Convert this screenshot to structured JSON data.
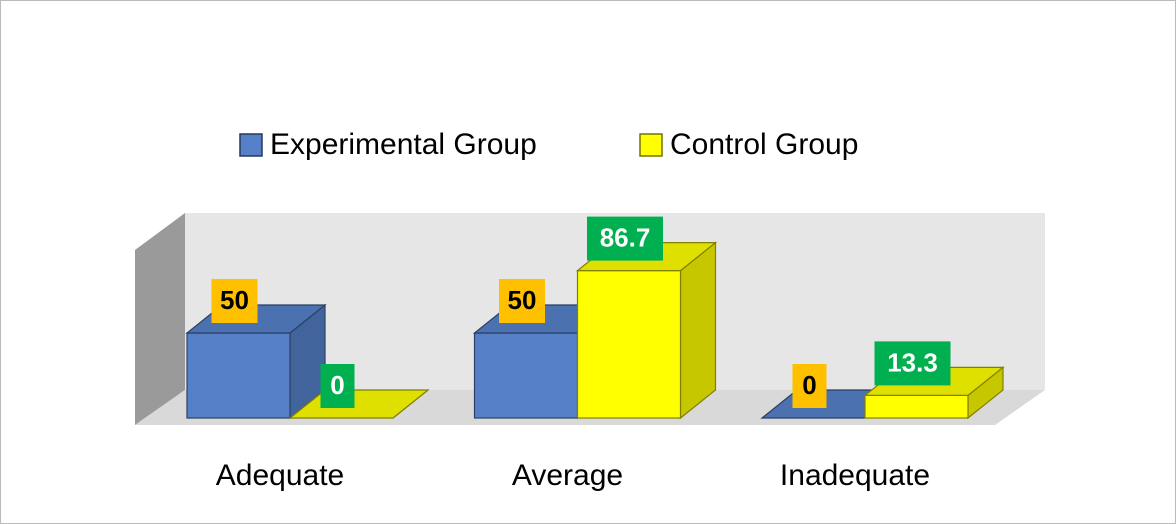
{
  "chart_data": {
    "type": "bar3d",
    "categories": [
      "Adequate",
      "Average",
      "Inadequate"
    ],
    "series": [
      {
        "name": "Experimental Group",
        "color": "#5580c8",
        "label_color": "#ffc000",
        "label_text_color": "#000000",
        "values": [
          50,
          50,
          0
        ]
      },
      {
        "name": "Control Group",
        "color": "#ffff00",
        "label_color": "#00b050",
        "label_text_color": "#ffffff",
        "values": [
          0,
          86.7,
          13.3
        ]
      }
    ]
  }
}
